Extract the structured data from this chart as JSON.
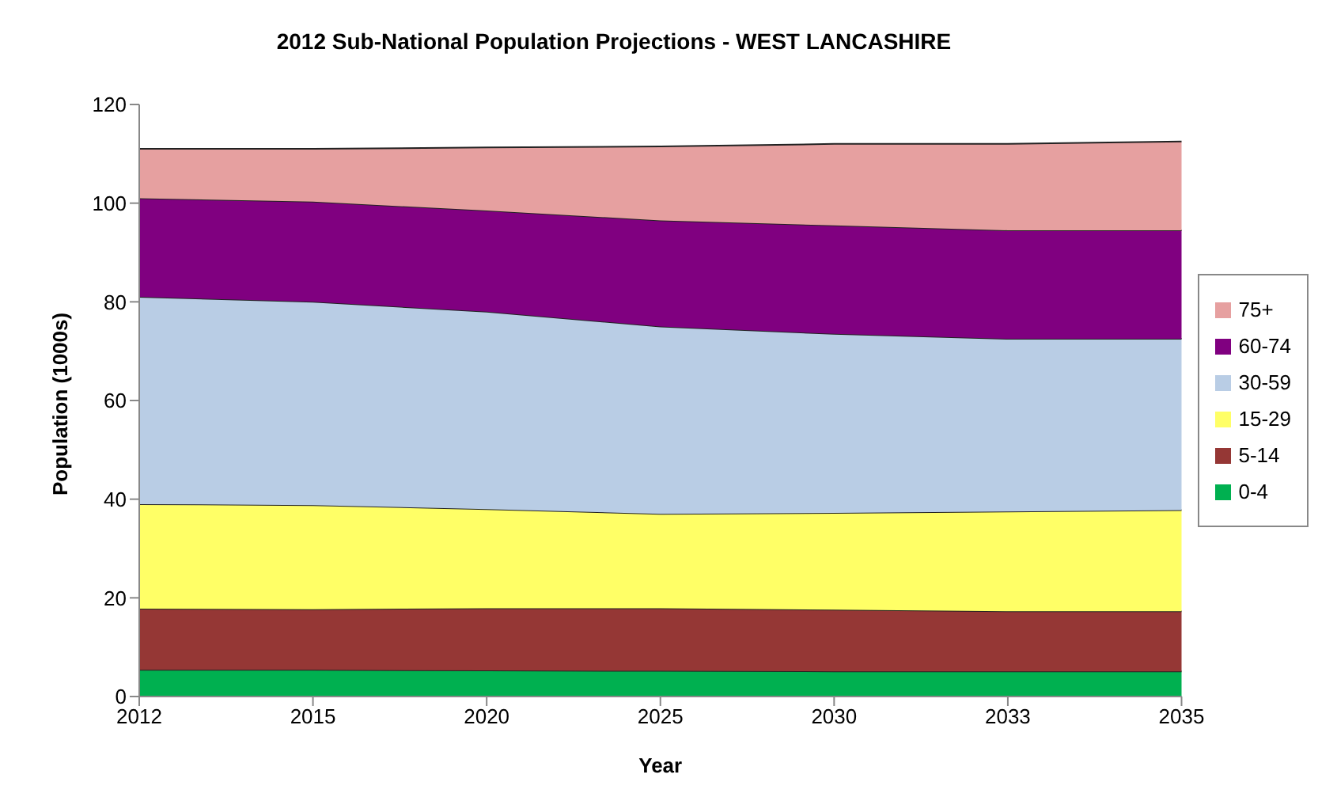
{
  "chart_data": {
    "type": "area",
    "stacked": true,
    "title": "2012 Sub-National Population Projections - WEST LANCASHIRE",
    "xlabel": "Year",
    "ylabel": "Population (1000s)",
    "categories": [
      "2012",
      "2015",
      "2020",
      "2025",
      "2030",
      "2033",
      "2035"
    ],
    "ylim": [
      0,
      120
    ],
    "yticks": [
      0,
      20,
      40,
      60,
      80,
      100,
      120
    ],
    "legend": "right",
    "grid": false,
    "series": [
      {
        "name": "0-4",
        "color": "#00b050",
        "values": [
          5.4,
          5.4,
          5.3,
          5.2,
          5.1,
          5.1,
          5.1
        ]
      },
      {
        "name": "5-14",
        "color": "#953735",
        "values": [
          12.4,
          12.3,
          12.6,
          12.7,
          12.5,
          12.2,
          12.2
        ]
      },
      {
        "name": "15-29",
        "color": "#ffff66",
        "values": [
          21.2,
          21.1,
          20.1,
          19.1,
          19.6,
          20.2,
          20.5
        ]
      },
      {
        "name": "30-59",
        "color": "#b9cde5",
        "values": [
          42,
          41.2,
          40,
          38,
          36.3,
          35,
          34.7
        ]
      },
      {
        "name": "60-74",
        "color": "#800080",
        "values": [
          20,
          20.3,
          20.5,
          21.5,
          22,
          22,
          22
        ]
      },
      {
        "name": "75+",
        "color": "#e6a0a0",
        "values": [
          10,
          10.7,
          12.8,
          15,
          16.5,
          17.5,
          18
        ]
      }
    ]
  }
}
